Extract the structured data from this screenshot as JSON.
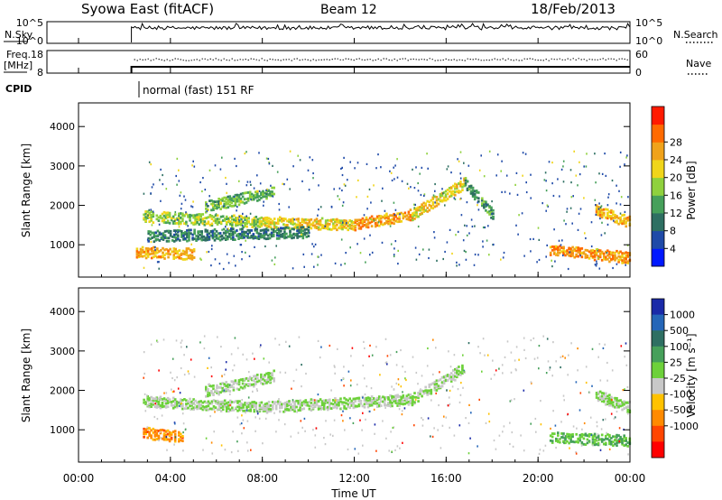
{
  "header": {
    "title": "Syowa East (fitACF)",
    "beam": "Beam 12",
    "date": "18/Feb/2013"
  },
  "top_panels": {
    "nsky_label": "N.Sky",
    "nsky_ticks": [
      "10^5",
      "10^0"
    ],
    "nsearch_label": "N.Search",
    "nsearch_ticks": [
      "10^5",
      "10^0"
    ],
    "freq_label_line1": "Freq.",
    "freq_label_line2": "[MHz]",
    "freq_ticks": [
      "18",
      "8"
    ],
    "nave_label": "Nave",
    "nave_ticks": [
      "60",
      "0"
    ],
    "cpid_label": "CPID",
    "cpid_value": "normal (fast) 151 RF"
  },
  "axes": {
    "xlabel": "Time UT",
    "ylabel": "Slant Range [km]",
    "x_ticks": [
      "00:00",
      "04:00",
      "08:00",
      "12:00",
      "16:00",
      "20:00",
      "00:00"
    ],
    "y_ticks": [
      "1000",
      "2000",
      "3000",
      "4000"
    ]
  },
  "colorbars": {
    "power": {
      "label": "Power [dB]",
      "ticks": [
        "4",
        "8",
        "12",
        "16",
        "20",
        "24",
        "28"
      ],
      "colors": [
        "#0018ff",
        "#1f4aa8",
        "#2e6f62",
        "#46a05a",
        "#8fd13d",
        "#f0d51a",
        "#f0a21a",
        "#ff6a00",
        "#ff1a00"
      ]
    },
    "velocity": {
      "label": "Velocity [m s⁻¹]",
      "ticks": [
        "1000",
        "500",
        "100",
        "25",
        "-25",
        "-100",
        "-500",
        "-1000"
      ],
      "colors": [
        "#1a2aa8",
        "#2566b8",
        "#2e6f62",
        "#46a05a",
        "#6dd13a",
        "#c8c8c8",
        "#ffc200",
        "#ff8a00",
        "#ff4500",
        "#ff0000"
      ]
    }
  },
  "chart_data": [
    {
      "type": "heatmap",
      "name": "power",
      "xlabel": "Time UT",
      "ylabel": "Slant Range [km]",
      "x_range_hours": [
        0,
        24
      ],
      "y_range_km": [
        180,
        4600
      ],
      "data_start_hour": 2.3,
      "colorbar_range_db": [
        0,
        32
      ],
      "features": [
        {
          "kind": "band",
          "x": [
            2.8,
            8.0
          ],
          "y_start": 1750,
          "y_end": 1600,
          "value_db": 16
        },
        {
          "kind": "band",
          "x": [
            8.0,
            12.0
          ],
          "y_start": 1600,
          "y_end": 1550,
          "value_db": 20
        },
        {
          "kind": "band",
          "x": [
            12.0,
            14.5
          ],
          "y_start": 1550,
          "y_end": 1800,
          "value_db": 24
        },
        {
          "kind": "band",
          "x": [
            14.5,
            16.8
          ],
          "y_start": 1800,
          "y_end": 2600,
          "value_db": 20
        },
        {
          "kind": "band",
          "x": [
            16.8,
            18.0
          ],
          "y_start": 2600,
          "y_end": 1800,
          "value_db": 12
        },
        {
          "kind": "band",
          "x": [
            3.0,
            10.0
          ],
          "y_start": 1250,
          "y_end": 1350,
          "value_db": 10
        },
        {
          "kind": "band",
          "x": [
            2.5,
            5.0
          ],
          "y_start": 850,
          "y_end": 800,
          "value_db": 22
        },
        {
          "kind": "band",
          "x": [
            5.5,
            8.5
          ],
          "y_start": 2000,
          "y_end": 2400,
          "value_db": 14
        },
        {
          "kind": "band",
          "x": [
            20.5,
            24.0
          ],
          "y_start": 900,
          "y_end": 700,
          "value_db": 24
        },
        {
          "kind": "band",
          "x": [
            22.5,
            24.0
          ],
          "y_start": 1900,
          "y_end": 1600,
          "value_db": 22
        }
      ]
    },
    {
      "type": "heatmap",
      "name": "velocity",
      "xlabel": "Time UT",
      "ylabel": "Slant Range [km]",
      "x_range_hours": [
        0,
        24
      ],
      "y_range_km": [
        180,
        4600
      ],
      "data_start_hour": 2.3,
      "colorbar_range_ms": [
        -1000,
        1000
      ],
      "features": [
        {
          "kind": "band",
          "x": [
            2.8,
            8.0
          ],
          "y_start": 1750,
          "y_end": 1600,
          "value_ms": 0
        },
        {
          "kind": "band",
          "x": [
            8.0,
            14.5
          ],
          "y_start": 1600,
          "y_end": 1800,
          "value_ms": 0
        },
        {
          "kind": "band",
          "x": [
            14.5,
            16.8
          ],
          "y_start": 1800,
          "y_end": 2600,
          "value_ms": 0
        },
        {
          "kind": "band",
          "x": [
            5.5,
            8.5
          ],
          "y_start": 2000,
          "y_end": 2400,
          "value_ms": 0
        },
        {
          "kind": "band",
          "x": [
            2.8,
            4.5
          ],
          "y_start": 950,
          "y_end": 850,
          "value_ms": -500
        },
        {
          "kind": "band",
          "x": [
            20.5,
            24.0
          ],
          "y_start": 850,
          "y_end": 750,
          "value_ms": 200
        },
        {
          "kind": "band",
          "x": [
            22.5,
            24.0
          ],
          "y_start": 1900,
          "y_end": 1600,
          "value_ms": 50
        }
      ]
    }
  ]
}
